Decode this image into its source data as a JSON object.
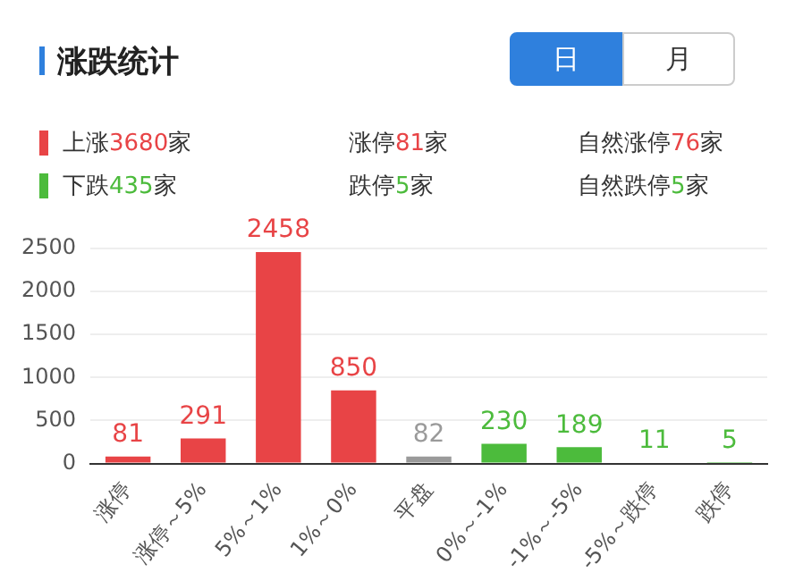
{
  "chart_data": {
    "type": "bar",
    "title": "涨跌统计",
    "annotations": [
      "日",
      "月",
      "上涨3680家",
      "涨停81家",
      "自然涨停76家",
      "下跌435家",
      "跌停5家",
      "自然跌停5家"
    ],
    "categories": [
      "涨停",
      "涨停～5%",
      "5%～1%",
      "1%～0%",
      "平盘",
      "0%～-1%",
      "-1%～-5%",
      "-5%～跌停",
      "跌停"
    ],
    "values": [
      81,
      291,
      2458,
      850,
      82,
      230,
      189,
      11,
      5
    ],
    "colors": [
      "#e84446",
      "#e84446",
      "#e84446",
      "#e84446",
      "#9a9a9a",
      "#4cbb3c",
      "#4cbb3c",
      "#4cbb3c",
      "#4cbb3c"
    ],
    "ylim": [
      0,
      2500
    ],
    "yticks": [
      0,
      500,
      1000,
      1500,
      2000,
      2500
    ],
    "grid": "y",
    "data_labels": true,
    "legend": false
  }
}
